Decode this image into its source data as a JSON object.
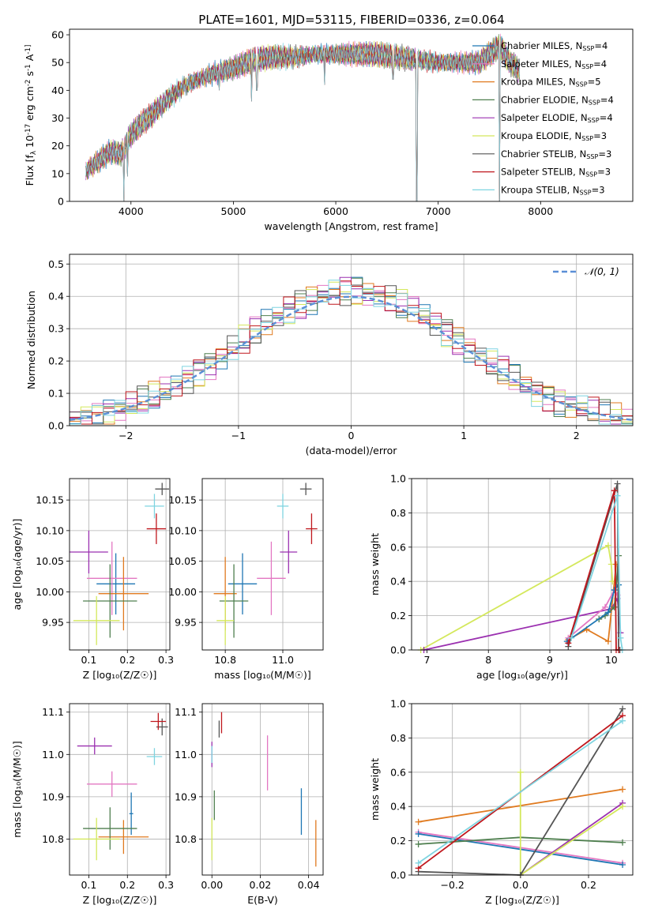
{
  "title": "PLATE=1601, MJD=53115, FIBERID=0336, z=0.064",
  "palette": {
    "Chabrier MILES": "#1f77b4",
    "Salpeter MILES": "#e377c2",
    "Kroupa MILES": "#e07a1f",
    "Chabrier ELODIE": "#4f7f4f",
    "Salpeter ELODIE": "#9b30b0",
    "Kroupa ELODIE": "#d4e85c",
    "Chabrier STELIB": "#555555",
    "Salpeter STELIB": "#c0171d",
    "Kroupa STELIB": "#7fd4e0",
    "normal": "#5b8fd6"
  },
  "chart_data": [
    {
      "id": "spectrum",
      "type": "line",
      "xlabel": "wavelength [Angstrom, rest frame]",
      "ylabel": "Flux [f_λ 10^-17 erg cm^-2 s^-1 A^-1]",
      "xlim": [
        3400,
        8900
      ],
      "ylim": [
        0,
        62
      ],
      "xticks": [
        4000,
        5000,
        6000,
        7000,
        8000
      ],
      "yticks": [
        0,
        10,
        20,
        30,
        40,
        50,
        60
      ],
      "grid": false,
      "legend_position": "right",
      "legend": [
        {
          "model": "Chabrier MILES",
          "nssp": "4"
        },
        {
          "model": "Salpeter MILES",
          "nssp": "4"
        },
        {
          "model": "Kroupa MILES",
          "nssp": "5"
        },
        {
          "model": "Chabrier ELODIE",
          "nssp": "4"
        },
        {
          "model": "Salpeter ELODIE",
          "nssp": "4"
        },
        {
          "model": "Kroupa ELODIE",
          "nssp": "3"
        },
        {
          "model": "Chabrier STELIB",
          "nssp": "3"
        },
        {
          "model": "Salpeter STELIB",
          "nssp": "3"
        },
        {
          "model": "Kroupa STELIB",
          "nssp": "3"
        }
      ],
      "envelope_x": [
        3560,
        3700,
        3800,
        3900,
        4000,
        4100,
        4200,
        4300,
        4400,
        4500,
        4600,
        4800,
        5000,
        5200,
        5400,
        5600,
        5800,
        6000,
        6200,
        6400,
        6600,
        6800,
        7000,
        7200,
        7400,
        7600,
        7700,
        7800
      ],
      "envelope_y": [
        11,
        15,
        18,
        17,
        24,
        28,
        31,
        35,
        38,
        41,
        43,
        46,
        48,
        51,
        52,
        52,
        53,
        53,
        53,
        53,
        52,
        51,
        50,
        50,
        50,
        56,
        50,
        47
      ],
      "dips": [
        [
          3930,
          0
        ],
        [
          3968,
          9
        ],
        [
          4300,
          30
        ],
        [
          4861,
          40
        ],
        [
          5175,
          36
        ],
        [
          5230,
          40
        ],
        [
          5890,
          42
        ],
        [
          6560,
          44
        ],
        [
          6790,
          0
        ],
        [
          7600,
          0
        ]
      ]
    },
    {
      "id": "residuals",
      "type": "line",
      "xlabel": "(data-model)/error",
      "ylabel": "Normed distribution",
      "xlim": [
        -2.5,
        2.5
      ],
      "ylim": [
        0,
        0.53
      ],
      "xticks": [
        -2,
        -1,
        0,
        1,
        2
      ],
      "yticks": [
        0.0,
        0.1,
        0.2,
        0.3,
        0.4,
        0.5
      ],
      "grid": true,
      "legend_position": "top-right",
      "normal_label": "𝒩(0, 1)",
      "bin_width": 0.1
    },
    {
      "id": "age_vs_Z",
      "type": "scatter",
      "xlabel": "Z [log₁₀(Z/Z☉)]",
      "ylabel": "age [log₁₀(age/yr)]",
      "xlim": [
        0.05,
        0.31
      ],
      "ylim": [
        9.905,
        10.185
      ],
      "xticks": [
        0.1,
        0.2,
        0.3
      ],
      "yticks": [
        9.95,
        10.0,
        10.05,
        10.1,
        10.15
      ],
      "grid": true,
      "points": [
        {
          "model": "Chabrier MILES",
          "x": 0.17,
          "y": 10.013,
          "xerr": 0.05,
          "yerr": 0.05
        },
        {
          "model": "Salpeter MILES",
          "x": 0.16,
          "y": 10.022,
          "xerr": 0.065,
          "yerr": 0.06
        },
        {
          "model": "Kroupa MILES",
          "x": 0.19,
          "y": 9.997,
          "xerr": 0.065,
          "yerr": 0.06
        },
        {
          "model": "Chabrier ELODIE",
          "x": 0.155,
          "y": 9.985,
          "xerr": 0.07,
          "yerr": 0.06
        },
        {
          "model": "Salpeter ELODIE",
          "x": 0.1,
          "y": 10.065,
          "xerr": 0.05,
          "yerr": 0.035
        },
        {
          "model": "Kroupa ELODIE",
          "x": 0.12,
          "y": 9.953,
          "xerr": 0.06,
          "yerr": 0.04
        },
        {
          "model": "Chabrier STELIB",
          "x": 0.29,
          "y": 10.168,
          "xerr": 0.018,
          "yerr": 0.01
        },
        {
          "model": "Salpeter STELIB",
          "x": 0.275,
          "y": 10.103,
          "xerr": 0.025,
          "yerr": 0.025
        },
        {
          "model": "Kroupa STELIB",
          "x": 0.27,
          "y": 10.14,
          "xerr": 0.025,
          "yerr": 0.02
        }
      ]
    },
    {
      "id": "age_vs_mass",
      "type": "scatter",
      "xlabel": "mass [log₁₀(M/M☉)]",
      "ylabel": "",
      "xlim": [
        10.72,
        11.14
      ],
      "ylim": [
        9.905,
        10.185
      ],
      "xticks": [
        10.8,
        11.0
      ],
      "yticks": [
        9.95,
        10.0,
        10.05,
        10.1,
        10.15
      ],
      "grid": true,
      "points": [
        {
          "model": "Chabrier MILES",
          "x": 10.86,
          "y": 10.013,
          "xerr": 0.05,
          "yerr": 0.05
        },
        {
          "model": "Salpeter MILES",
          "x": 10.96,
          "y": 10.022,
          "xerr": 0.05,
          "yerr": 0.06
        },
        {
          "model": "Kroupa MILES",
          "x": 10.8,
          "y": 9.997,
          "xerr": 0.04,
          "yerr": 0.06
        },
        {
          "model": "Chabrier ELODIE",
          "x": 10.83,
          "y": 9.985,
          "xerr": 0.05,
          "yerr": 0.06
        },
        {
          "model": "Salpeter ELODIE",
          "x": 11.02,
          "y": 10.065,
          "xerr": 0.03,
          "yerr": 0.035
        },
        {
          "model": "Kroupa ELODIE",
          "x": 10.8,
          "y": 9.953,
          "xerr": 0.03,
          "yerr": 0.04
        },
        {
          "model": "Chabrier STELIB",
          "x": 11.08,
          "y": 10.168,
          "xerr": 0.02,
          "yerr": 0.01
        },
        {
          "model": "Salpeter STELIB",
          "x": 11.1,
          "y": 10.103,
          "xerr": 0.02,
          "yerr": 0.025
        },
        {
          "model": "Kroupa STELIB",
          "x": 11.0,
          "y": 10.14,
          "xerr": 0.02,
          "yerr": 0.02
        }
      ]
    },
    {
      "id": "weight_vs_age",
      "type": "line",
      "xlabel": "age [log₁₀(age/yr)]",
      "ylabel": "mass weight",
      "xlim": [
        6.75,
        10.35
      ],
      "ylim": [
        0,
        1
      ],
      "xticks": [
        7,
        8,
        9,
        10
      ],
      "yticks": [
        0.0,
        0.2,
        0.4,
        0.6,
        0.8,
        1.0
      ],
      "grid": true,
      "series": [
        {
          "model": "Kroupa ELODIE",
          "x": [
            6.9,
            9.95,
            10.0,
            10.02
          ],
          "y": [
            0.0,
            0.61,
            0.5,
            0.4
          ]
        },
        {
          "model": "Salpeter ELODIE",
          "x": [
            6.95,
            10.0,
            10.1,
            10.15
          ],
          "y": [
            0.0,
            0.24,
            0.3,
            0.1
          ]
        },
        {
          "model": "Kroupa MILES",
          "x": [
            9.3,
            9.6,
            9.95,
            10.08
          ],
          "y": [
            0.06,
            0.12,
            0.05,
            0.5
          ]
        },
        {
          "model": "Chabrier ELODIE",
          "x": [
            9.8,
            9.9,
            10.05,
            10.12
          ],
          "y": [
            0.18,
            0.2,
            0.25,
            0.55
          ]
        },
        {
          "model": "Salpeter MILES",
          "x": [
            9.3,
            9.9,
            10.05,
            10.1
          ],
          "y": [
            0.07,
            0.25,
            0.35,
            0.32
          ]
        },
        {
          "model": "Chabrier MILES",
          "x": [
            9.28,
            9.95,
            10.05,
            10.12
          ],
          "y": [
            0.05,
            0.22,
            0.35,
            0.38
          ]
        },
        {
          "model": "Chabrier STELIB",
          "x": [
            9.3,
            10.1,
            10.12,
            10.14
          ],
          "y": [
            0.02,
            0.97,
            0.0,
            0.0
          ]
        },
        {
          "model": "Salpeter STELIB",
          "x": [
            9.3,
            10.05,
            10.08,
            10.12
          ],
          "y": [
            0.04,
            0.93,
            0.0,
            0.0
          ]
        },
        {
          "model": "Kroupa STELIB",
          "x": [
            9.35,
            10.1,
            10.15,
            10.18
          ],
          "y": [
            0.07,
            0.9,
            0.07,
            0.0
          ]
        }
      ]
    },
    {
      "id": "mass_vs_Z",
      "type": "scatter",
      "xlabel": "Z [log₁₀(Z/Z☉)]",
      "ylabel": "mass [log₁₀(M/M☉)]",
      "xlim": [
        0.05,
        0.31
      ],
      "ylim": [
        10.715,
        11.12
      ],
      "xticks": [
        0.1,
        0.2,
        0.3
      ],
      "yticks": [
        10.8,
        10.9,
        11.0,
        11.1
      ],
      "grid": true,
      "points": [
        {
          "model": "Chabrier MILES",
          "x": 0.21,
          "y": 10.86,
          "xerr": 0.005,
          "yerr": 0.05
        },
        {
          "model": "Salpeter MILES",
          "x": 0.16,
          "y": 10.93,
          "xerr": 0.065,
          "yerr": 0.03
        },
        {
          "model": "Kroupa MILES",
          "x": 0.19,
          "y": 10.805,
          "xerr": 0.065,
          "yerr": 0.04
        },
        {
          "model": "Chabrier ELODIE",
          "x": 0.155,
          "y": 10.825,
          "xerr": 0.07,
          "yerr": 0.05
        },
        {
          "model": "Salpeter ELODIE",
          "x": 0.115,
          "y": 11.02,
          "xerr": 0.045,
          "yerr": 0.02
        },
        {
          "model": "Kroupa ELODIE",
          "x": 0.12,
          "y": 10.8,
          "xerr": 0.06,
          "yerr": 0.05
        },
        {
          "model": "Chabrier STELIB",
          "x": 0.29,
          "y": 11.065,
          "xerr": 0.015,
          "yerr": 0.02
        },
        {
          "model": "Salpeter STELIB",
          "x": 0.28,
          "y": 11.078,
          "xerr": 0.02,
          "yerr": 0.02
        },
        {
          "model": "Kroupa STELIB",
          "x": 0.27,
          "y": 10.995,
          "xerr": 0.02,
          "yerr": 0.02
        }
      ]
    },
    {
      "id": "mass_vs_EBV",
      "type": "scatter",
      "xlabel": "E(B-V)",
      "ylabel": "",
      "xlim": [
        -0.004,
        0.046
      ],
      "ylim": [
        10.715,
        11.12
      ],
      "xticks": [
        0.0,
        0.02,
        0.04
      ],
      "yticks": [
        10.8,
        10.9,
        11.0,
        11.1
      ],
      "grid": true,
      "points": [
        {
          "model": "Chabrier MILES",
          "x": 0.037,
          "y": 10.865,
          "xerr": 0.0,
          "yerr": 0.055
        },
        {
          "model": "Salpeter MILES",
          "x": 0.023,
          "y": 10.98,
          "xerr": 0.0,
          "yerr": 0.065
        },
        {
          "model": "Kroupa MILES",
          "x": 0.043,
          "y": 10.79,
          "xerr": 0.0,
          "yerr": 0.055
        },
        {
          "model": "Chabrier ELODIE",
          "x": 0.001,
          "y": 10.88,
          "xerr": 0.0,
          "yerr": 0.035
        },
        {
          "model": "Salpeter ELODIE",
          "x": 0.0,
          "y": 11.0,
          "xerr": 0.0,
          "yerr": 0.03
        },
        {
          "model": "Kroupa ELODIE",
          "x": 0.0,
          "y": 10.8,
          "xerr": 0.0,
          "yerr": 0.05
        },
        {
          "model": "Chabrier STELIB",
          "x": 0.003,
          "y": 11.06,
          "xerr": 0.0,
          "yerr": 0.02
        },
        {
          "model": "Salpeter STELIB",
          "x": 0.004,
          "y": 11.075,
          "xerr": 0.0,
          "yerr": 0.025
        },
        {
          "model": "Kroupa STELIB",
          "x": 0.0,
          "y": 11.0,
          "xerr": 0.0,
          "yerr": 0.02
        }
      ]
    },
    {
      "id": "weight_vs_Z",
      "type": "line",
      "xlabel": "Z [log₁₀(Z/Z☉)]",
      "ylabel": "mass weight",
      "xlim": [
        -0.32,
        0.33
      ],
      "ylim": [
        0,
        1
      ],
      "xticks": [
        -0.2,
        0.0,
        0.2
      ],
      "yticks": [
        0.0,
        0.2,
        0.4,
        0.6,
        0.8,
        1.0
      ],
      "grid": true,
      "series": [
        {
          "model": "Kroupa MILES",
          "x": [
            -0.3,
            0.3
          ],
          "y": [
            0.31,
            0.5
          ]
        },
        {
          "model": "Salpeter MILES",
          "x": [
            -0.3,
            0.3
          ],
          "y": [
            0.25,
            0.07
          ]
        },
        {
          "model": "Chabrier MILES",
          "x": [
            -0.3,
            0.3
          ],
          "y": [
            0.24,
            0.06
          ]
        },
        {
          "model": "Chabrier ELODIE",
          "x": [
            -0.3,
            0.0,
            0.3
          ],
          "y": [
            0.18,
            0.22,
            0.19
          ]
        },
        {
          "model": "Salpeter ELODIE",
          "x": [
            0.0,
            0.3
          ],
          "y": [
            0.0,
            0.42
          ]
        },
        {
          "model": "Kroupa ELODIE",
          "x": [
            0.0,
            0.0,
            0.3
          ],
          "y": [
            0.6,
            0.0,
            0.4
          ]
        },
        {
          "model": "Chabrier STELIB",
          "x": [
            -0.3,
            0.0,
            0.3
          ],
          "y": [
            0.02,
            0.0,
            0.97
          ]
        },
        {
          "model": "Salpeter STELIB",
          "x": [
            -0.3,
            0.3
          ],
          "y": [
            0.04,
            0.93
          ]
        },
        {
          "model": "Kroupa STELIB",
          "x": [
            -0.3,
            0.3
          ],
          "y": [
            0.07,
            0.9
          ]
        }
      ]
    }
  ]
}
